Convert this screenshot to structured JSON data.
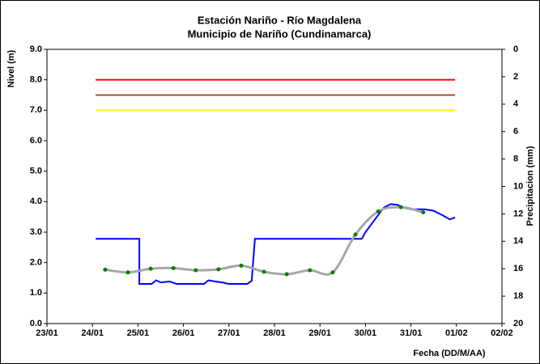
{
  "chart_data": {
    "type": "line",
    "title": "Estación Nariño  - Río Magdalena",
    "subtitle": "Municipio de Nariño (Cundinamarca)",
    "y_label": "Nivel (m)",
    "y2_label": "Precipitacion (mm)",
    "x_label": "Fecha (DD/M/AA)",
    "xlim": [
      0,
      10
    ],
    "xticks": [
      {
        "value": 0,
        "label": "23/01"
      },
      {
        "value": 1,
        "label": "24/01"
      },
      {
        "value": 2,
        "label": "25/01"
      },
      {
        "value": 3,
        "label": "26/01"
      },
      {
        "value": 4,
        "label": "27/01"
      },
      {
        "value": 5,
        "label": "28/01"
      },
      {
        "value": 6,
        "label": "29/01"
      },
      {
        "value": 7,
        "label": "30/01"
      },
      {
        "value": 8,
        "label": "31/01"
      },
      {
        "value": 9,
        "label": "01/02"
      },
      {
        "value": 10,
        "label": "02/02"
      }
    ],
    "ylim": [
      0,
      9
    ],
    "yticks": [
      {
        "value": 0,
        "label": "0.0"
      },
      {
        "value": 1,
        "label": "1.0"
      },
      {
        "value": 2,
        "label": "2.0"
      },
      {
        "value": 3,
        "label": "3.0"
      },
      {
        "value": 4,
        "label": "4.0"
      },
      {
        "value": 5,
        "label": "5.0"
      },
      {
        "value": 6,
        "label": "6.0"
      },
      {
        "value": 7,
        "label": "7.0"
      },
      {
        "value": 8,
        "label": "8.0"
      },
      {
        "value": 9,
        "label": "9.0"
      }
    ],
    "y2lim": [
      20,
      0
    ],
    "y2ticks": [
      0,
      2,
      4,
      6,
      8,
      10,
      12,
      14,
      16,
      18,
      20
    ],
    "grid": false,
    "series": [
      {
        "color": "#ff0000",
        "x": [
          1.07,
          8.97
        ],
        "values": [
          8,
          8
        ]
      },
      {
        "color": "#a0522d",
        "x": [
          1.07,
          8.97
        ],
        "values": [
          7.5,
          7.5
        ]
      },
      {
        "color": "#ffff00",
        "x": [
          1.07,
          8.97
        ],
        "values": [
          7,
          7
        ]
      },
      {
        "color": "#0000ff",
        "x": [
          1.07,
          2.03,
          2.03,
          2.3,
          2.4,
          2.5,
          2.7,
          2.85,
          3.3,
          3.45,
          3.55,
          3.7,
          3.85,
          4.0,
          4.4,
          4.5,
          4.57,
          6.92,
          7.0,
          7.2,
          7.4,
          7.55,
          7.7,
          7.85,
          8.0,
          8.3,
          8.5,
          8.7,
          8.85,
          8.97
        ],
        "values": [
          2.78,
          2.78,
          1.3,
          1.3,
          1.42,
          1.35,
          1.38,
          1.3,
          1.3,
          1.3,
          1.42,
          1.38,
          1.35,
          1.3,
          1.3,
          1.4,
          2.78,
          2.78,
          3.0,
          3.4,
          3.8,
          3.92,
          3.9,
          3.8,
          3.75,
          3.75,
          3.7,
          3.55,
          3.42,
          3.48
        ]
      },
      {
        "color": "#a6a6a6",
        "marker_color": "#008000",
        "smooth": true,
        "x": [
          1.28,
          1.78,
          2.28,
          2.78,
          3.27,
          3.77,
          4.27,
          4.77,
          5.27,
          5.78,
          6.28,
          6.78,
          7.28,
          7.78,
          8.27
        ],
        "values": [
          1.77,
          1.68,
          1.8,
          1.82,
          1.75,
          1.78,
          1.9,
          1.7,
          1.62,
          1.75,
          1.68,
          2.92,
          3.68,
          3.82,
          3.65
        ]
      }
    ]
  }
}
